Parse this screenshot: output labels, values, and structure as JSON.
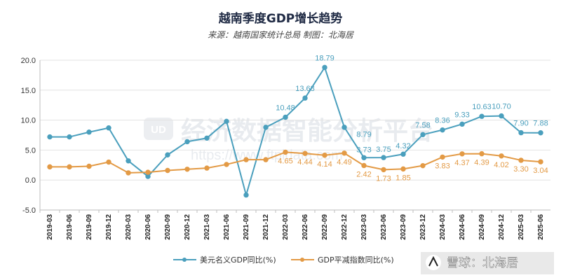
{
  "chart_data": {
    "type": "line",
    "title": "越南季度GDP增长趋势",
    "subtitle": "来源：越南国家统计总局 制图：北海居",
    "categories": [
      "2019-03",
      "2019-06",
      "2019-09",
      "2019-12",
      "2020-03",
      "2020-06",
      "2020-09",
      "2020-12",
      "2021-03",
      "2021-06",
      "2021-09",
      "2021-12",
      "2022-03",
      "2022-06",
      "2022-09",
      "2022-12",
      "2023-03",
      "2023-06",
      "2023-09",
      "2023-12",
      "2024-03",
      "2024-06",
      "2024-09",
      "2024-12",
      "2025-03",
      "2025-06"
    ],
    "ylim": [
      -5,
      20
    ],
    "yticks": [
      "-5.0",
      "0.0",
      "5.0",
      "10.0",
      "15.0",
      "20.0"
    ],
    "grid": "horizontal",
    "legend_position": "bottom",
    "series": [
      {
        "name": "美元名义GDP同比(%)",
        "color": "#4a9fbd",
        "values": [
          7.2,
          7.2,
          8.0,
          8.7,
          3.2,
          0.6,
          4.2,
          6.4,
          7.0,
          9.8,
          -2.5,
          8.8,
          10.48,
          13.68,
          18.79,
          8.8,
          3.73,
          3.75,
          4.32,
          7.58,
          8.36,
          9.33,
          10.63,
          10.7,
          7.9,
          7.88
        ],
        "labels": [
          "",
          "",
          "",
          "",
          "",
          "",
          "",
          "",
          "",
          "",
          "",
          "",
          "10.48",
          "13.68",
          "18.79",
          "",
          "3.73",
          "3.75",
          "4.32",
          "7.58",
          "8.36",
          "9.33",
          "10.63",
          "10.70",
          "7.90",
          "7.88"
        ],
        "extra_labels": [
          {
            "index": 16,
            "text": "8.79"
          }
        ]
      },
      {
        "name": "GDP平减指数同比(%)",
        "color": "#e39a45",
        "values": [
          2.2,
          2.2,
          2.3,
          3.0,
          1.2,
          1.3,
          1.6,
          1.8,
          2.0,
          2.6,
          3.4,
          3.4,
          4.65,
          4.44,
          4.14,
          4.49,
          2.42,
          1.73,
          1.85,
          2.4,
          3.83,
          4.37,
          4.39,
          4.02,
          3.3,
          3.04
        ],
        "labels": [
          "",
          "",
          "",
          "",
          "",
          "",
          "",
          "",
          "",
          "",
          "",
          "",
          "4.65",
          "4.44",
          "4.14",
          "4.49",
          "2.42",
          "1.73",
          "1.85",
          "",
          "3.83",
          "4.37",
          "4.39",
          "4.02",
          "3.30",
          "3.04"
        ]
      }
    ]
  },
  "watermark": {
    "logo": "UD",
    "text": "经济数据智能分析平台",
    "url": "https://www.ftpidata.com"
  },
  "badge": {
    "text": "雪球：北海居"
  }
}
